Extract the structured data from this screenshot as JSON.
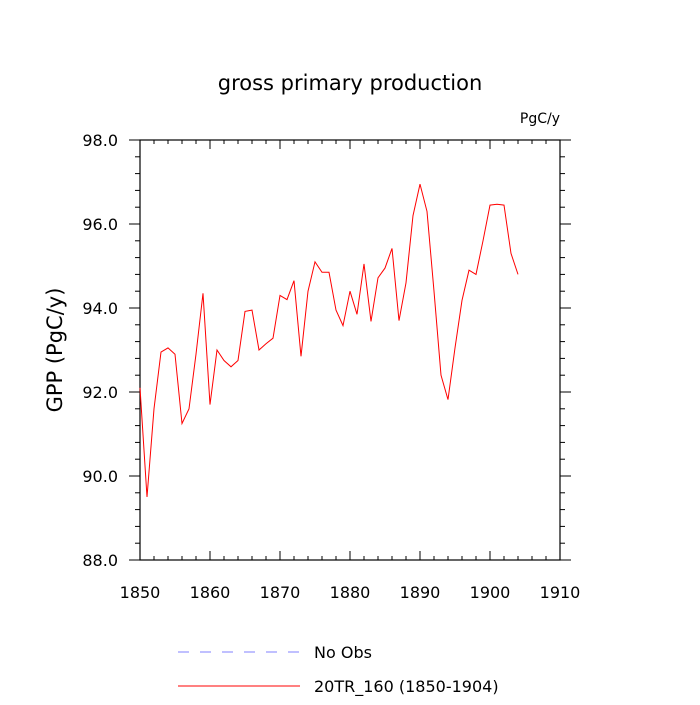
{
  "chart_data": {
    "type": "line",
    "title": "gross primary production",
    "units_label": "PgC/y",
    "xlabel": "",
    "ylabel": "GPP  (PgC/y)",
    "xlim": [
      1850,
      1910
    ],
    "ylim": [
      88.0,
      98.0
    ],
    "x_ticks": [
      1850,
      1860,
      1870,
      1880,
      1890,
      1900,
      1910
    ],
    "x_tick_labels": [
      "1850",
      "1860",
      "1870",
      "1880",
      "1890",
      "1900",
      "1910"
    ],
    "y_ticks": [
      88.0,
      90.0,
      92.0,
      94.0,
      96.0,
      98.0
    ],
    "y_tick_labels": [
      "88.0",
      "90.0",
      "92.0",
      "94.0",
      "96.0",
      "98.0"
    ],
    "grid": false,
    "legend_position": "bottom",
    "series": [
      {
        "name": "20TR_160 (1850-1904)",
        "color": "#ff0000",
        "dash": "solid",
        "x": [
          1850,
          1851,
          1852,
          1853,
          1854,
          1855,
          1856,
          1857,
          1858,
          1859,
          1860,
          1861,
          1862,
          1863,
          1864,
          1865,
          1866,
          1867,
          1868,
          1869,
          1870,
          1871,
          1872,
          1873,
          1874,
          1875,
          1876,
          1877,
          1878,
          1879,
          1880,
          1881,
          1882,
          1883,
          1884,
          1885,
          1886,
          1887,
          1888,
          1889,
          1890,
          1891,
          1892,
          1893,
          1894,
          1895,
          1896,
          1897,
          1898,
          1899,
          1900,
          1901,
          1902,
          1903,
          1904
        ],
        "y": [
          92.1,
          89.5,
          91.6,
          92.95,
          93.05,
          92.9,
          91.25,
          91.6,
          92.9,
          94.35,
          91.7,
          93.0,
          92.75,
          92.6,
          92.75,
          93.92,
          93.95,
          93.0,
          93.15,
          93.28,
          94.3,
          94.2,
          94.65,
          92.85,
          94.4,
          95.1,
          94.85,
          94.85,
          93.95,
          93.58,
          94.4,
          93.85,
          95.05,
          93.68,
          94.72,
          94.95,
          95.42,
          93.7,
          94.6,
          96.2,
          96.95,
          96.3,
          94.4,
          92.4,
          91.82,
          93.05,
          94.18,
          94.9,
          94.8,
          95.6,
          96.45,
          96.47,
          96.45,
          95.3,
          94.8
        ]
      }
    ],
    "legend": [
      {
        "label": "No Obs",
        "color": "#8080ff",
        "dash": "dashed"
      },
      {
        "label": "20TR_160 (1850-1904)",
        "color": "#ff0000",
        "dash": "solid"
      }
    ]
  }
}
